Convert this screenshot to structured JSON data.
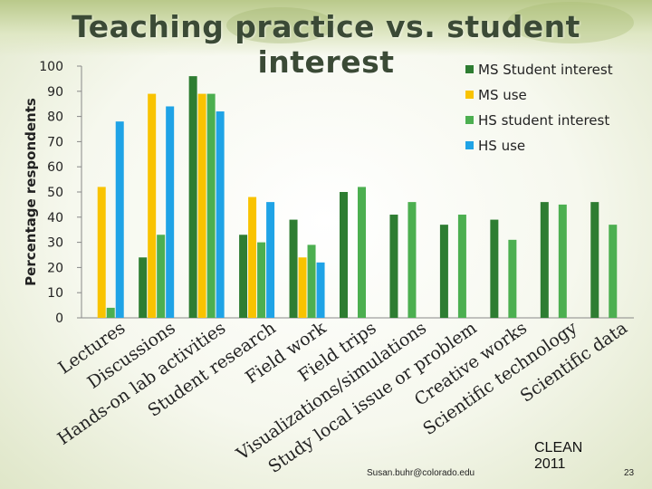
{
  "slide": {
    "title": "Teaching practice vs. student interest",
    "credit": "Susan.buhr@colorado.edu",
    "clean_line1": "CLEAN",
    "clean_line2": "2011",
    "page_number": "23"
  },
  "chart_data": {
    "type": "bar",
    "title": "",
    "xlabel": "",
    "ylabel": "Percentage respondents",
    "ylim": [
      0,
      100
    ],
    "yticks": [
      0,
      10,
      20,
      30,
      40,
      50,
      60,
      70,
      80,
      90,
      100
    ],
    "grid": false,
    "legend_position": "top-right",
    "categories": [
      "Lectures",
      "Discussions",
      "Hands-on lab activities",
      "Student research",
      "Field work",
      "Field trips",
      "Visualizations/simulations",
      "Study local issue or problem",
      "Creative works",
      "Scientific technology",
      "Scientific data"
    ],
    "series": [
      {
        "name": "MS Student interest",
        "color": "#2e7d32",
        "values": [
          null,
          24,
          96,
          33,
          39,
          50,
          41,
          37,
          39,
          46,
          46
        ]
      },
      {
        "name": "MS use",
        "color": "#f9c300",
        "values": [
          52,
          89,
          89,
          48,
          24,
          null,
          null,
          null,
          null,
          null,
          null
        ]
      },
      {
        "name": "HS student interest",
        "color": "#4caf50",
        "values": [
          4,
          33,
          89,
          30,
          29,
          52,
          46,
          41,
          31,
          45,
          37
        ]
      },
      {
        "name": "HS use",
        "color": "#1fa3e6",
        "values": [
          78,
          84,
          82,
          46,
          22,
          null,
          null,
          null,
          null,
          null,
          null
        ]
      }
    ]
  }
}
